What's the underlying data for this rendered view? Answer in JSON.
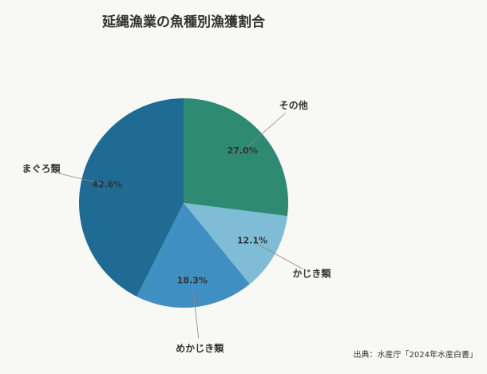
{
  "chart_data": {
    "type": "pie",
    "title": "延縄漁業の魚種別漁獲割合",
    "categories": [
      "その他",
      "かじき類",
      "めかじき類",
      "まぐろ類"
    ],
    "values": [
      27.0,
      12.1,
      18.3,
      42.6
    ],
    "value_labels": [
      "27.0%",
      "12.1%",
      "18.3%",
      "42.6%"
    ],
    "colors": [
      "#2e8a72",
      "#7fbcd6",
      "#3f8fc3",
      "#1f6b94"
    ],
    "source": "出典：水産庁「2024年水産白書」"
  }
}
